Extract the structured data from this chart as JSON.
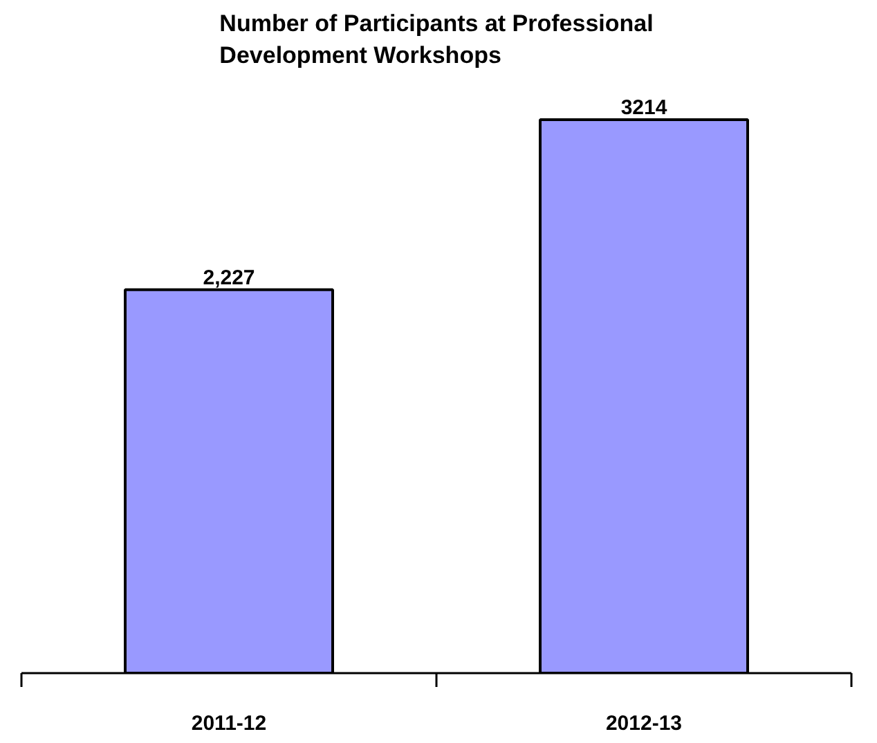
{
  "chart_data": {
    "type": "bar",
    "title": "Number of Participants at Professional Development Workshops",
    "categories": [
      "2011-12",
      "2012-13"
    ],
    "values": [
      2227,
      3214
    ],
    "value_labels": [
      "2,227",
      "3214"
    ],
    "color": "#9999ff"
  }
}
